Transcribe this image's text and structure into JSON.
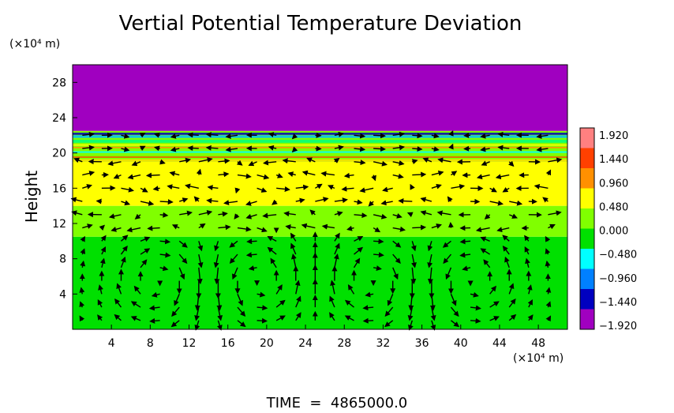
{
  "chart_data": {
    "type": "heatmap",
    "title": "Vertial Potential Temperature Deviation",
    "ylabel": "Height",
    "y_unit_label": "(×10⁴ m)",
    "x_unit_label": "(×10⁴ m)",
    "xlim": [
      0,
      51
    ],
    "ylim": [
      0,
      30
    ],
    "x_ticks": [
      4,
      8,
      12,
      16,
      20,
      24,
      28,
      32,
      36,
      40,
      44,
      48
    ],
    "y_ticks": [
      4,
      8,
      12,
      16,
      20,
      24,
      28
    ],
    "colorbar": {
      "ticks": [
        "1.920",
        "1.440",
        "0.960",
        "0.480",
        "0.000",
        "−0.480",
        "−0.960",
        "−1.440",
        "−1.920"
      ],
      "range": [
        -1.92,
        1.92
      ],
      "colors": [
        "#ff8080",
        "#ff4000",
        "#ff9000",
        "#ffff00",
        "#80ff00",
        "#00e000",
        "#00ffff",
        "#0080ff",
        "#0000c0",
        "#a000c0"
      ]
    },
    "field_bands": [
      {
        "y_range": [
          0,
          10.5
        ],
        "value": 0.0
      },
      {
        "y_range": [
          10.5,
          14
        ],
        "value": 0.25
      },
      {
        "y_range": [
          14,
          19
        ],
        "value": 0.5
      },
      {
        "y_range": [
          19,
          22.5
        ],
        "value": 0.3
      },
      {
        "y_range": [
          22.5,
          30
        ],
        "value": -1.92
      }
    ],
    "vector_field": "wind arrows",
    "footer": "TIME  =  4865000.0"
  }
}
